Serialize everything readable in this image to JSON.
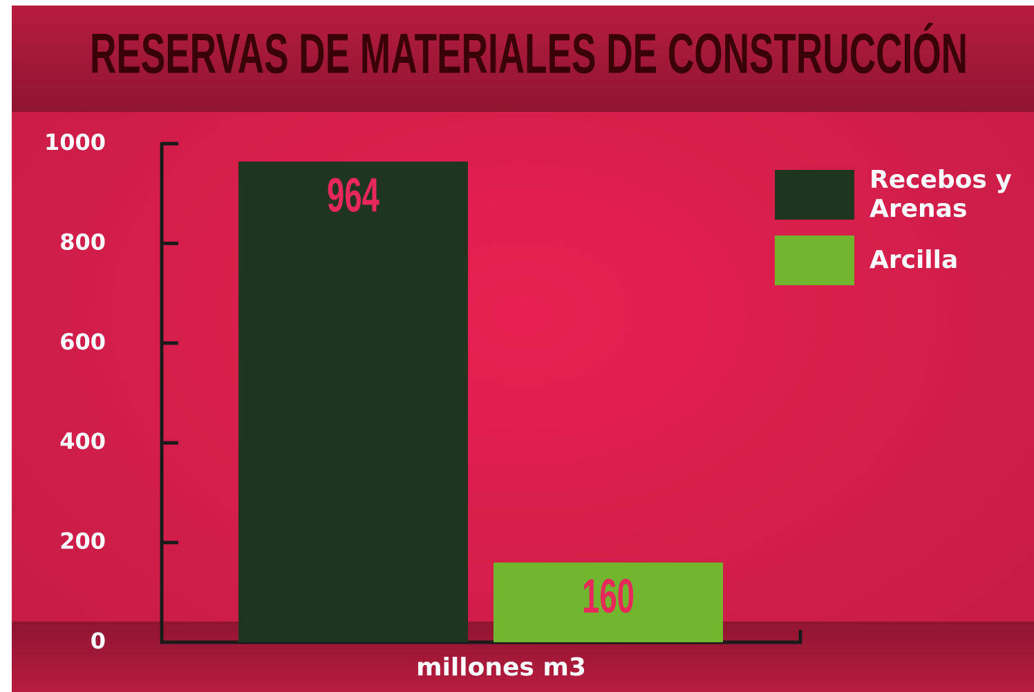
{
  "chart_data": {
    "type": "bar",
    "title": "RESERVAS DE MATERIALES DE CONSTRUCCIÓN",
    "x_label": "millones m3",
    "categories": [
      null
    ],
    "series": [
      {
        "name": "Recebos y Arenas",
        "color": "#1f3520",
        "values": [
          964
        ]
      },
      {
        "name": "Arcilla",
        "color": "#72b52e",
        "values": [
          160
        ]
      }
    ],
    "ylim": [
      0,
      1000
    ],
    "yticks": [
      0,
      200,
      400,
      600,
      800,
      1000
    ]
  }
}
